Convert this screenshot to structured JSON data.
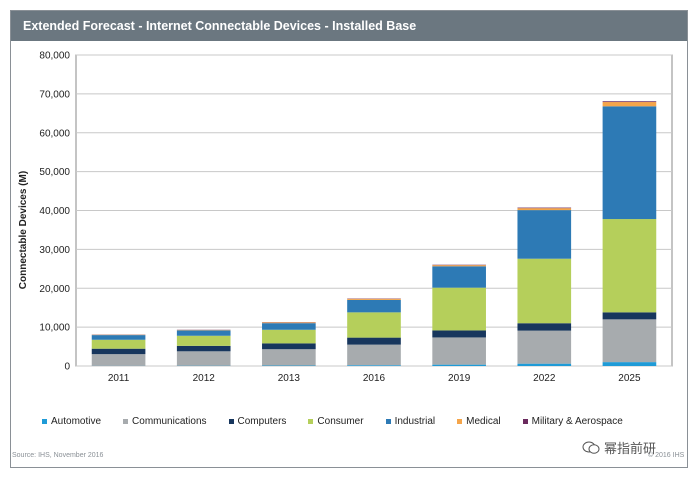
{
  "title": "Extended Forecast - Internet Connectable Devices - Installed Base",
  "source": "Source: IHS, November 2016",
  "copyright": "© 2016 IHS",
  "watermark": "幂指前研",
  "chart_data": {
    "type": "bar",
    "stacked": true,
    "categories": [
      "2011",
      "2012",
      "2013",
      "2016",
      "2019",
      "2022",
      "2025"
    ],
    "ylabel": "Connectable Devices (M)",
    "ylim": [
      0,
      80000
    ],
    "yticks": [
      0,
      10000,
      20000,
      30000,
      40000,
      50000,
      60000,
      70000,
      80000
    ],
    "ytick_labels": [
      "0",
      "10,000",
      "20,000",
      "30,000",
      "40,000",
      "50,000",
      "60,000",
      "70,000",
      "80,000"
    ],
    "grid": true,
    "legend_position": "bottom",
    "series": [
      {
        "name": "Automotive",
        "color": "#1f9bd7",
        "values": [
          50,
          80,
          120,
          200,
          350,
          600,
          1000
        ]
      },
      {
        "name": "Communications",
        "color": "#a7abae",
        "values": [
          3000,
          3700,
          4200,
          5300,
          7000,
          8500,
          11000
        ]
      },
      {
        "name": "Computers",
        "color": "#17365d",
        "values": [
          1400,
          1400,
          1500,
          1800,
          1800,
          1900,
          1800
        ]
      },
      {
        "name": "Consumer",
        "color": "#b5cf5b",
        "values": [
          2300,
          2600,
          3500,
          6500,
          11000,
          16600,
          24000
        ]
      },
      {
        "name": "Industrial",
        "color": "#2d7ab5",
        "values": [
          1200,
          1400,
          1700,
          3200,
          5500,
          12500,
          29000
        ]
      },
      {
        "name": "Medical",
        "color": "#f5a54a",
        "values": [
          100,
          100,
          200,
          300,
          300,
          500,
          1100
        ]
      },
      {
        "name": "Military & Aerospace",
        "color": "#6b2a5e",
        "values": [
          50,
          50,
          60,
          80,
          100,
          150,
          200
        ]
      }
    ]
  }
}
